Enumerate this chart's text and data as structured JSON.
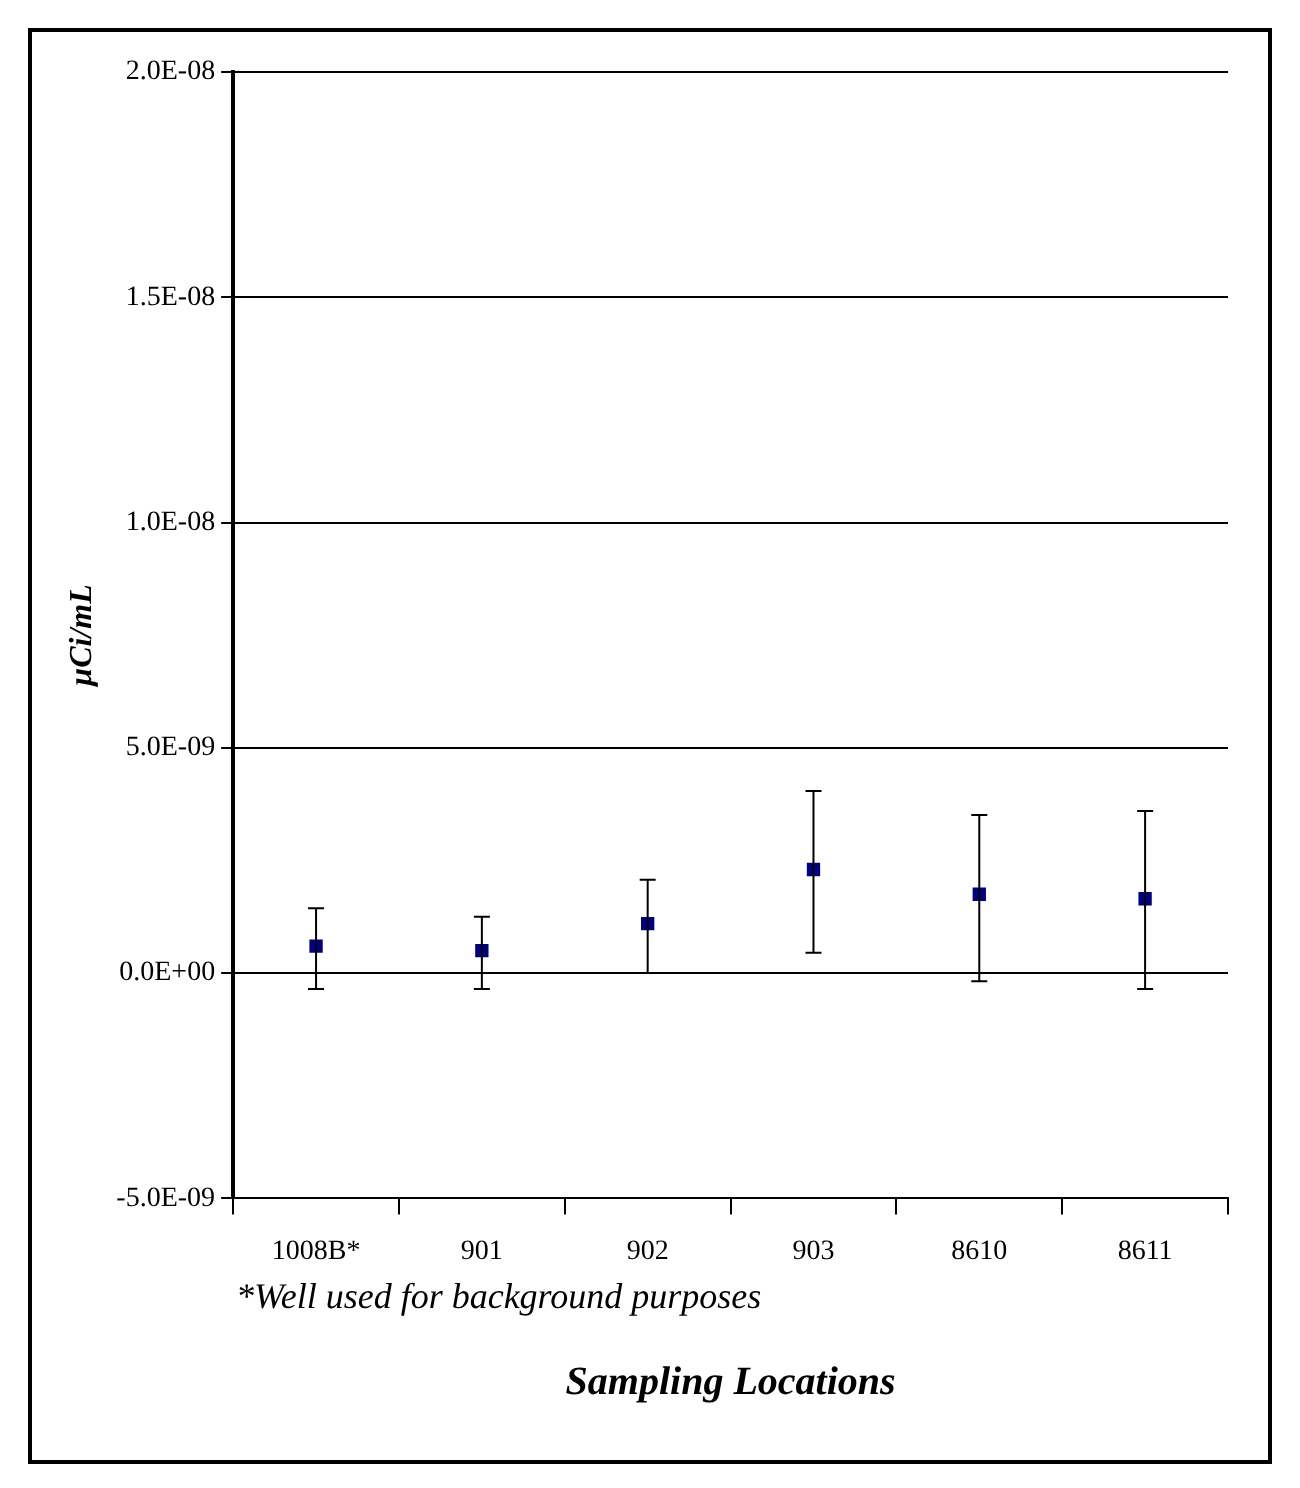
{
  "chart_data": {
    "type": "scatter",
    "xlabel": "Sampling Locations",
    "ylabel": "µCi/mL",
    "categories": [
      "1008B*",
      "901",
      "902",
      "903",
      "8610",
      "8611"
    ],
    "marker": "square",
    "series": [
      {
        "color": "#000080",
        "values": [
          6e-10,
          5e-10,
          1.1e-09,
          2.3e-09,
          1.75e-09,
          1.65e-09
        ],
        "errors": [
          [
            -3.5e-10,
            1.44e-09
          ],
          [
            -3.5e-10,
            1.25e-09
          ],
          [
            0,
            2.07e-09
          ],
          [
            4.5e-10,
            4.04e-09
          ],
          [
            -1.8e-10,
            3.51e-09
          ],
          [
            -3.5e-10,
            3.6e-09
          ]
        ]
      }
    ],
    "ylim": [
      -5e-09,
      2e-08
    ],
    "yticks": [
      {
        "value": -5e-09,
        "label": "-5.0E-09"
      },
      {
        "value": 0,
        "label": "0.0E+00"
      },
      {
        "value": 5e-09,
        "label": "5.0E-09"
      },
      {
        "value": 1e-08,
        "label": "1.0E-08"
      },
      {
        "value": 1.5e-08,
        "label": "1.5E-08"
      },
      {
        "value": 2e-08,
        "label": "2.0E-08"
      }
    ],
    "grid": "y",
    "legend": false,
    "annotations": [
      "*Well used for background purposes"
    ]
  }
}
